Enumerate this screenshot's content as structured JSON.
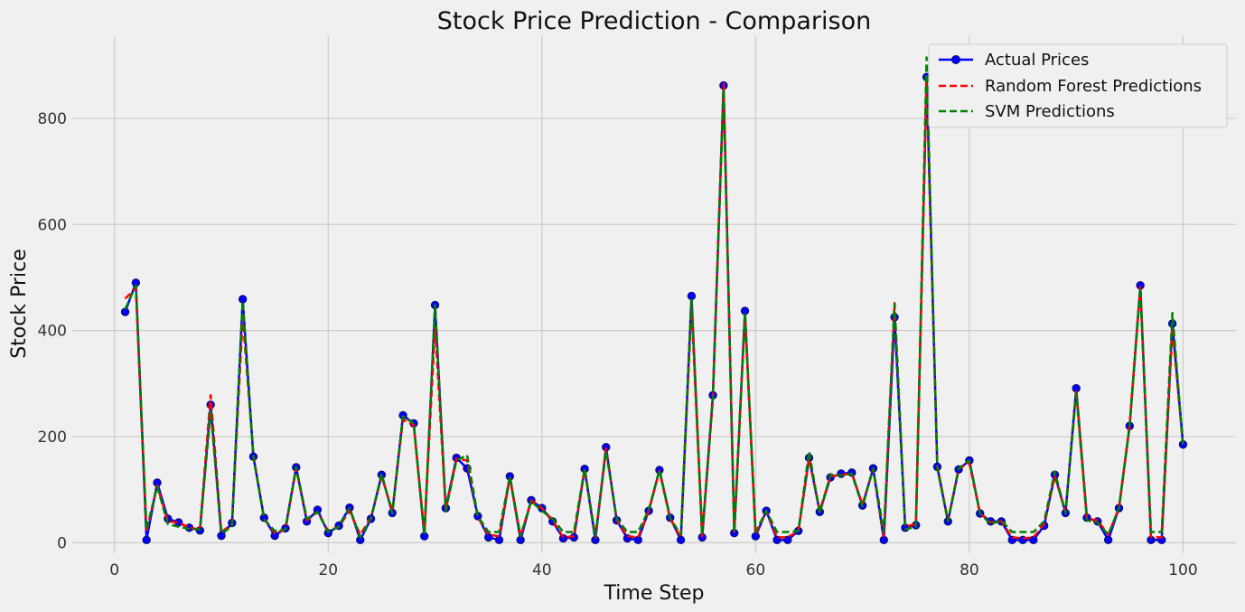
{
  "chart_data": {
    "type": "line",
    "title": "Stock Price Prediction - Comparison",
    "xlabel": "Time Step",
    "ylabel": "Stock Price",
    "xlim": [
      -3.95,
      104.95
    ],
    "ylim": [
      -20,
      955
    ],
    "xticks": [
      0,
      20,
      40,
      60,
      80,
      100
    ],
    "yticks": [
      0,
      200,
      400,
      600,
      800
    ],
    "grid": true,
    "legend_position": "top-right",
    "x": [
      1,
      2,
      3,
      4,
      5,
      6,
      7,
      8,
      9,
      10,
      11,
      12,
      13,
      14,
      15,
      16,
      17,
      18,
      19,
      20,
      21,
      22,
      23,
      24,
      25,
      26,
      27,
      28,
      29,
      30,
      31,
      32,
      33,
      34,
      35,
      36,
      37,
      38,
      39,
      40,
      41,
      42,
      43,
      44,
      45,
      46,
      47,
      48,
      49,
      50,
      51,
      52,
      53,
      54,
      55,
      56,
      57,
      58,
      59,
      60,
      61,
      62,
      63,
      64,
      65,
      66,
      67,
      68,
      69,
      70,
      71,
      72,
      73,
      74,
      75,
      76,
      77,
      78,
      79,
      80,
      81,
      82,
      83,
      84,
      85,
      86,
      87,
      88,
      89,
      90,
      91,
      92,
      93,
      94,
      95,
      96,
      97,
      98,
      99,
      100
    ],
    "series": [
      {
        "name": "Actual Prices",
        "color": "#0000ff",
        "style": "solid-markers",
        "values": [
          435,
          490,
          5,
          113,
          45,
          38,
          28,
          23,
          260,
          13,
          37,
          459,
          162,
          47,
          13,
          27,
          142,
          40,
          62,
          18,
          32,
          66,
          5,
          45,
          128,
          56,
          240,
          225,
          12,
          448,
          65,
          160,
          140,
          50,
          10,
          5,
          125,
          5,
          80,
          65,
          40,
          8,
          10,
          139,
          5,
          180,
          42,
          8,
          5,
          60,
          137,
          47,
          5,
          465,
          10,
          278,
          862,
          18,
          437,
          12,
          60,
          5,
          5,
          22,
          160,
          58,
          123,
          130,
          132,
          70,
          140,
          5,
          425,
          28,
          33,
          878,
          143,
          40,
          138,
          155,
          55,
          40,
          40,
          5,
          5,
          5,
          32,
          128,
          56,
          291,
          47,
          40,
          5,
          65,
          220,
          485,
          5,
          5,
          413,
          185
        ]
      },
      {
        "name": "Random Forest Predictions",
        "color": "#ff0000",
        "style": "dashed",
        "values": [
          460,
          480,
          20,
          108,
          40,
          38,
          28,
          25,
          278,
          20,
          35,
          425,
          165,
          45,
          18,
          25,
          140,
          42,
          58,
          22,
          30,
          60,
          15,
          47,
          125,
          60,
          232,
          222,
          18,
          410,
          62,
          158,
          155,
          48,
          15,
          12,
          122,
          12,
          80,
          65,
          42,
          10,
          12,
          138,
          10,
          178,
          42,
          12,
          10,
          60,
          135,
          45,
          10,
          445,
          12,
          270,
          865,
          20,
          430,
          15,
          60,
          10,
          10,
          22,
          158,
          60,
          125,
          128,
          130,
          72,
          138,
          12,
          452,
          30,
          35,
          870,
          145,
          42,
          140,
          150,
          55,
          38,
          40,
          10,
          8,
          10,
          35,
          125,
          58,
          288,
          45,
          42,
          15,
          65,
          222,
          482,
          10,
          10,
          405,
          182
        ]
      },
      {
        "name": "SVM Predictions",
        "color": "#008000",
        "style": "dashed",
        "values": [
          440,
          485,
          25,
          106,
          35,
          30,
          26,
          25,
          248,
          18,
          30,
          455,
          162,
          44,
          22,
          25,
          143,
          45,
          58,
          20,
          30,
          65,
          10,
          45,
          130,
          55,
          238,
          225,
          15,
          448,
          60,
          155,
          165,
          50,
          20,
          20,
          125,
          12,
          78,
          60,
          45,
          20,
          20,
          140,
          12,
          172,
          45,
          20,
          20,
          62,
          137,
          46,
          15,
          460,
          15,
          275,
          855,
          20,
          433,
          20,
          60,
          20,
          20,
          22,
          172,
          55,
          128,
          127,
          130,
          68,
          140,
          20,
          450,
          25,
          30,
          915,
          140,
          40,
          140,
          155,
          55,
          35,
          42,
          20,
          20,
          20,
          40,
          134,
          55,
          282,
          42,
          38,
          15,
          65,
          220,
          480,
          20,
          20,
          433,
          180
        ]
      }
    ]
  }
}
